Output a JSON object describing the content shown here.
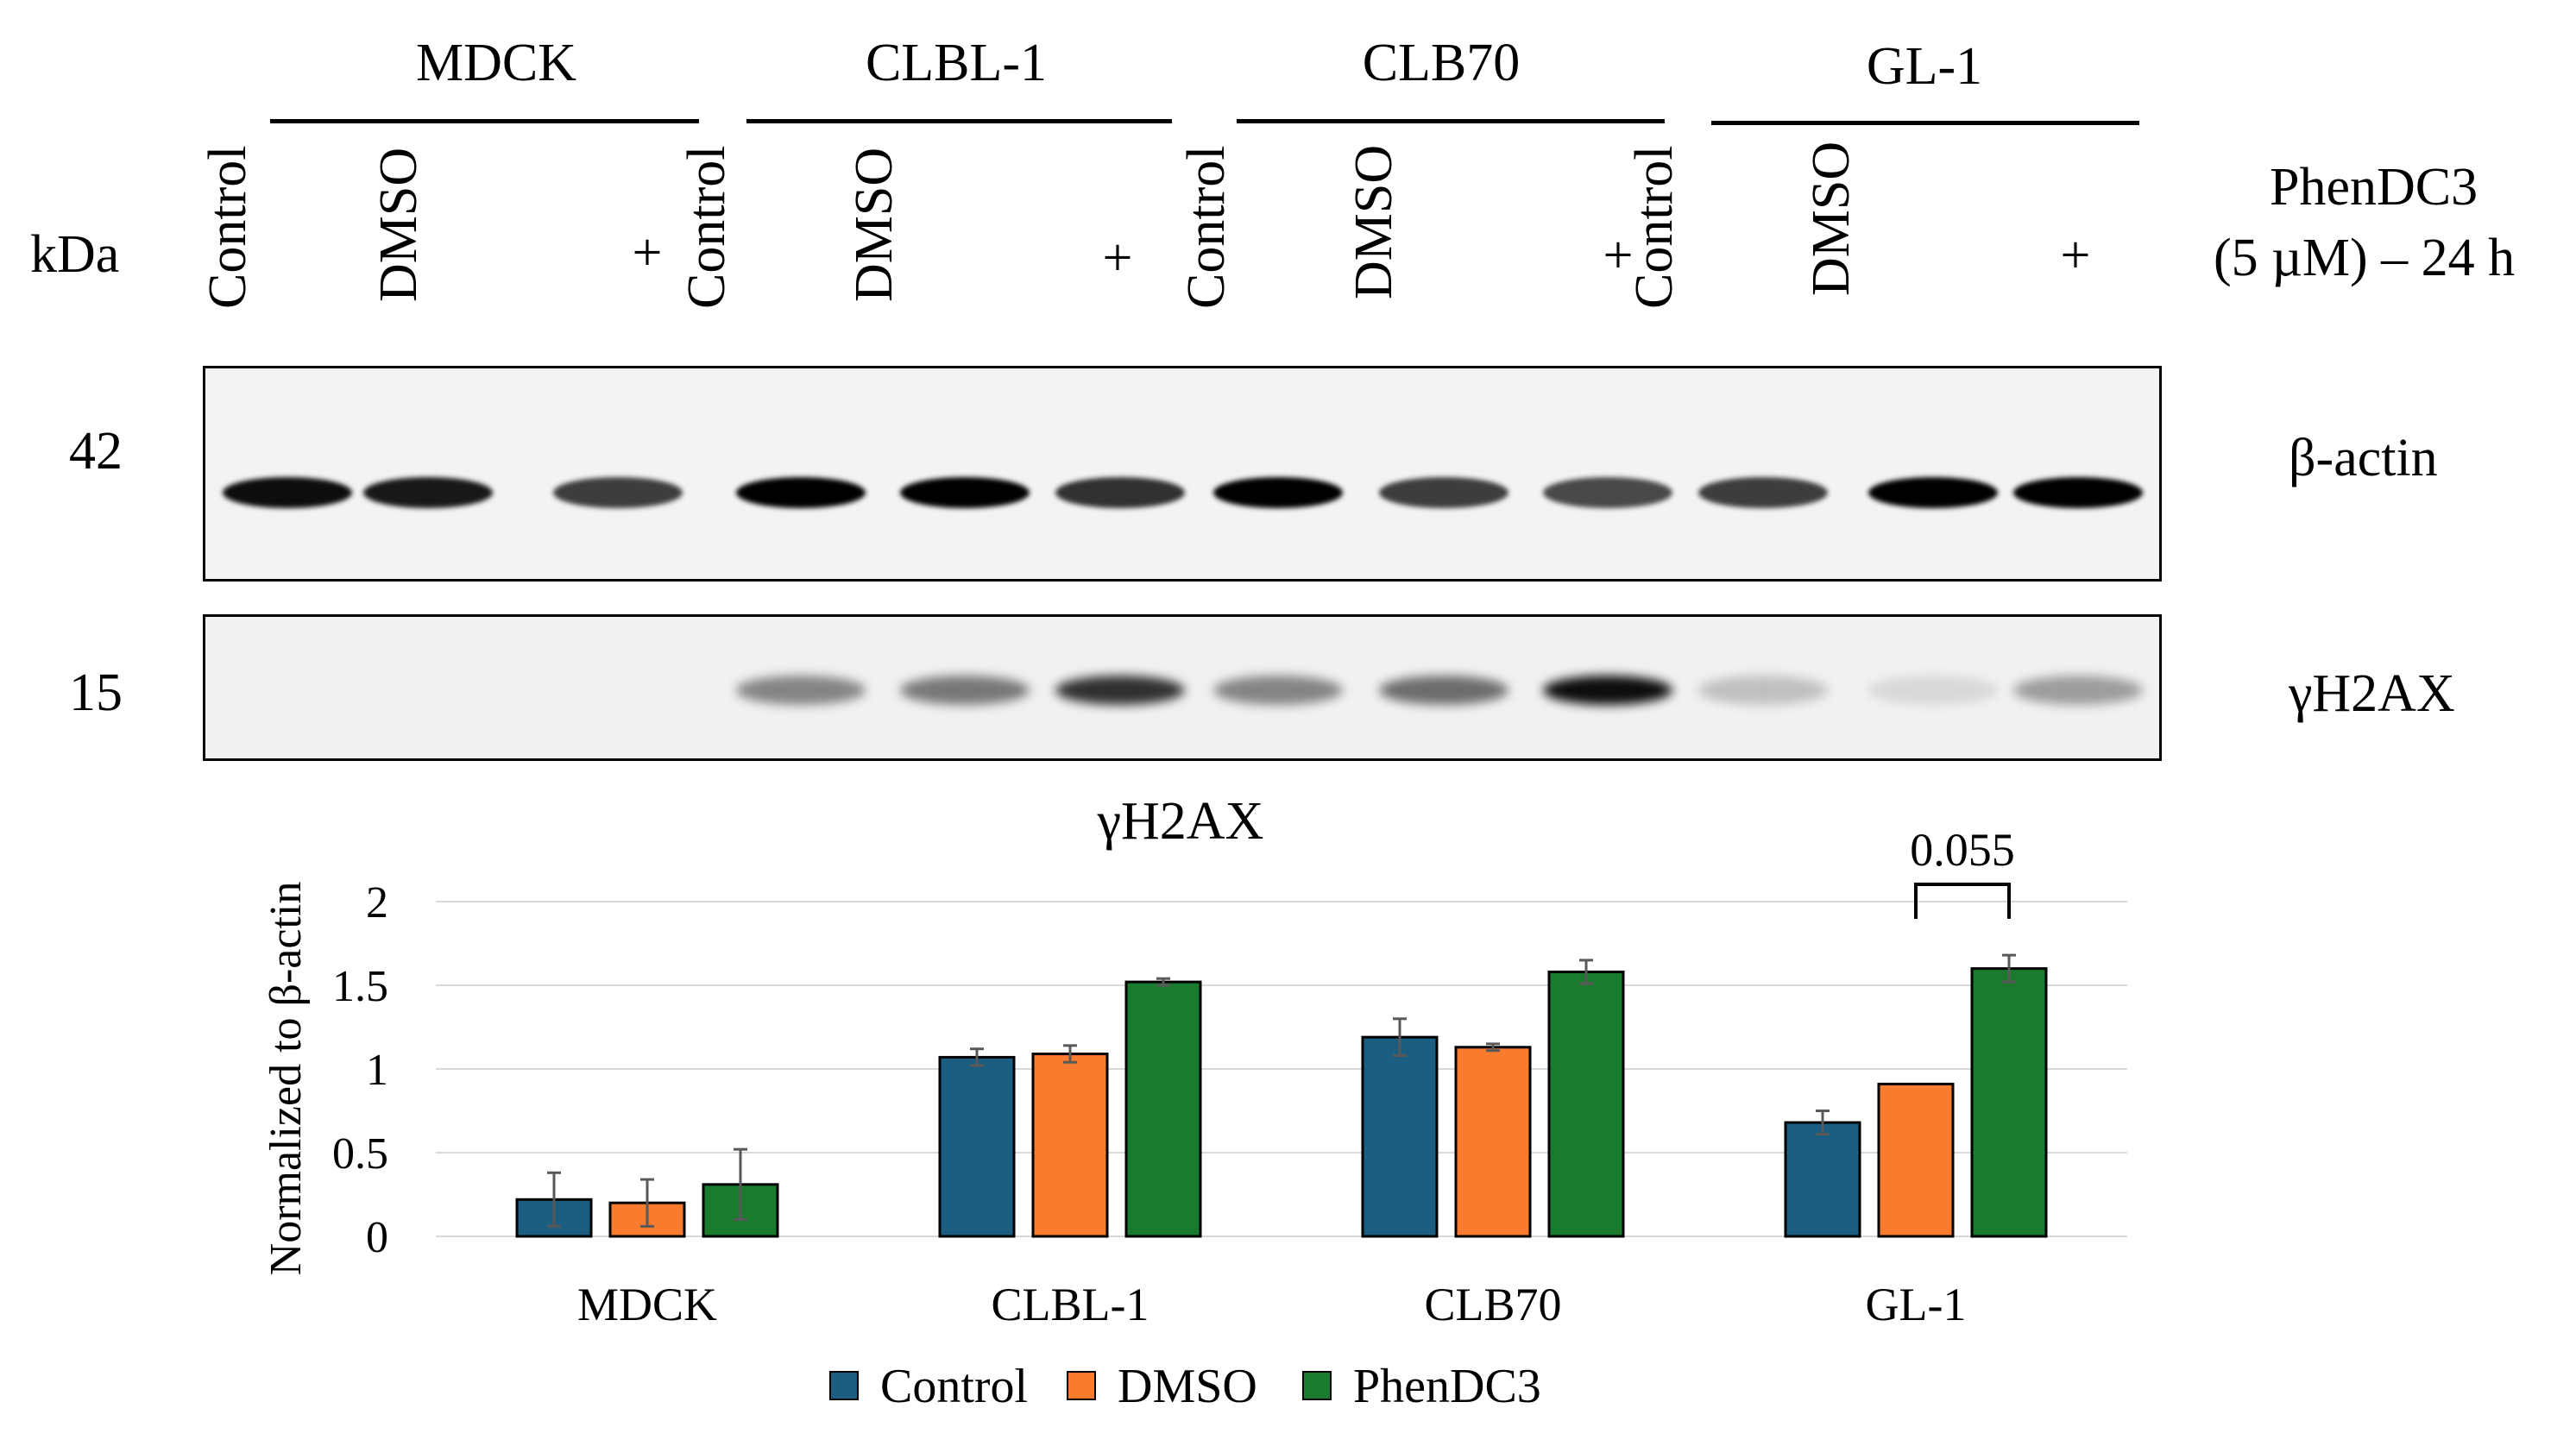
{
  "groups": [
    "MDCK",
    "CLBL-1",
    "CLB70",
    "GL-1"
  ],
  "lanes": [
    "Control",
    "DMSO",
    "+"
  ],
  "kda_label": "kDa",
  "treatment_label_line1": "PhenDC3",
  "treatment_label_line2": "(5 µM) – 24 h",
  "blots": [
    {
      "marker": "42",
      "protein": "β-actin",
      "band_intensity": [
        0.95,
        0.9,
        0.75,
        1.0,
        1.0,
        0.8,
        1.0,
        0.75,
        0.7,
        0.75,
        1.0,
        1.0
      ]
    },
    {
      "marker": "15",
      "protein": "γH2AX",
      "band_intensity": [
        0.0,
        0.0,
        0.0,
        0.45,
        0.5,
        0.8,
        0.45,
        0.55,
        0.95,
        0.2,
        0.1,
        0.35
      ]
    }
  ],
  "colors": {
    "Control": "#1b5e82",
    "DMSO": "#f97b2d",
    "PhenDC3": "#1a7a2d"
  },
  "chart_data": {
    "type": "bar",
    "title": "γH2AX",
    "xlabel": "",
    "ylabel": "Normalized to β-actin",
    "ylim": [
      0,
      2
    ],
    "yticks": [
      "0",
      "0.5",
      "1",
      "1.5",
      "2"
    ],
    "grid": true,
    "legend_position": "bottom",
    "categories": [
      "MDCK",
      "CLBL-1",
      "CLB70",
      "GL-1"
    ],
    "series": [
      {
        "name": "Control",
        "values": [
          0.22,
          1.07,
          1.19,
          0.68
        ],
        "errors": [
          0.16,
          0.05,
          0.11,
          0.07
        ]
      },
      {
        "name": "DMSO",
        "values": [
          0.2,
          1.09,
          1.13,
          0.91
        ],
        "errors": [
          0.14,
          0.05,
          0.02,
          0.0
        ]
      },
      {
        "name": "PhenDC3",
        "values": [
          0.31,
          1.52,
          1.58,
          1.6
        ],
        "errors": [
          0.21,
          0.02,
          0.07,
          0.08
        ]
      }
    ],
    "annotation": {
      "text": "0.055",
      "category": "GL-1",
      "from_series": "DMSO",
      "to_series": "PhenDC3"
    }
  }
}
